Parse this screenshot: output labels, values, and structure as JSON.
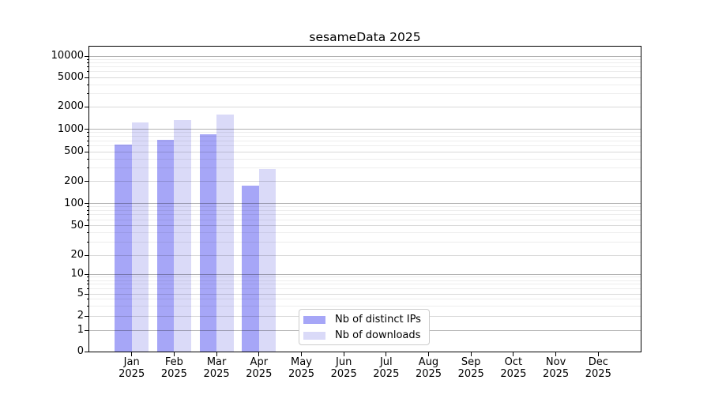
{
  "title": "sesameData 2025",
  "chart_data": {
    "type": "bar",
    "title": "sesameData 2025",
    "categories": [
      "Jan 2025",
      "Feb 2025",
      "Mar 2025",
      "Apr 2025",
      "May 2025",
      "Jun 2025",
      "Jul 2025",
      "Aug 2025",
      "Sep 2025",
      "Oct 2025",
      "Nov 2025",
      "Dec 2025"
    ],
    "series": [
      {
        "name": "Nb of distinct IPs",
        "color": "#a6a6f7",
        "values": [
          630,
          715,
          850,
          175,
          null,
          null,
          null,
          null,
          null,
          null,
          null,
          null
        ]
      },
      {
        "name": "Nb of downloads",
        "color": "#dadaf8",
        "values": [
          1230,
          1310,
          1560,
          295,
          null,
          null,
          null,
          null,
          null,
          null,
          null,
          null
        ]
      }
    ],
    "xlabel": "",
    "ylabel": "",
    "yscale": "symlog",
    "yticks": [
      0,
      1,
      2,
      5,
      10,
      20,
      50,
      100,
      200,
      500,
      1000,
      2000,
      5000,
      10000
    ],
    "ylim": [
      0,
      13500
    ],
    "grid": true,
    "legend_position": "lower-center"
  },
  "colors": {
    "axis": "#000000",
    "major_grid": "#b3b3b3",
    "sub_grid": "#d9d9d9",
    "minor_grid": "#ededed",
    "legend_border": "#cccccc"
  }
}
